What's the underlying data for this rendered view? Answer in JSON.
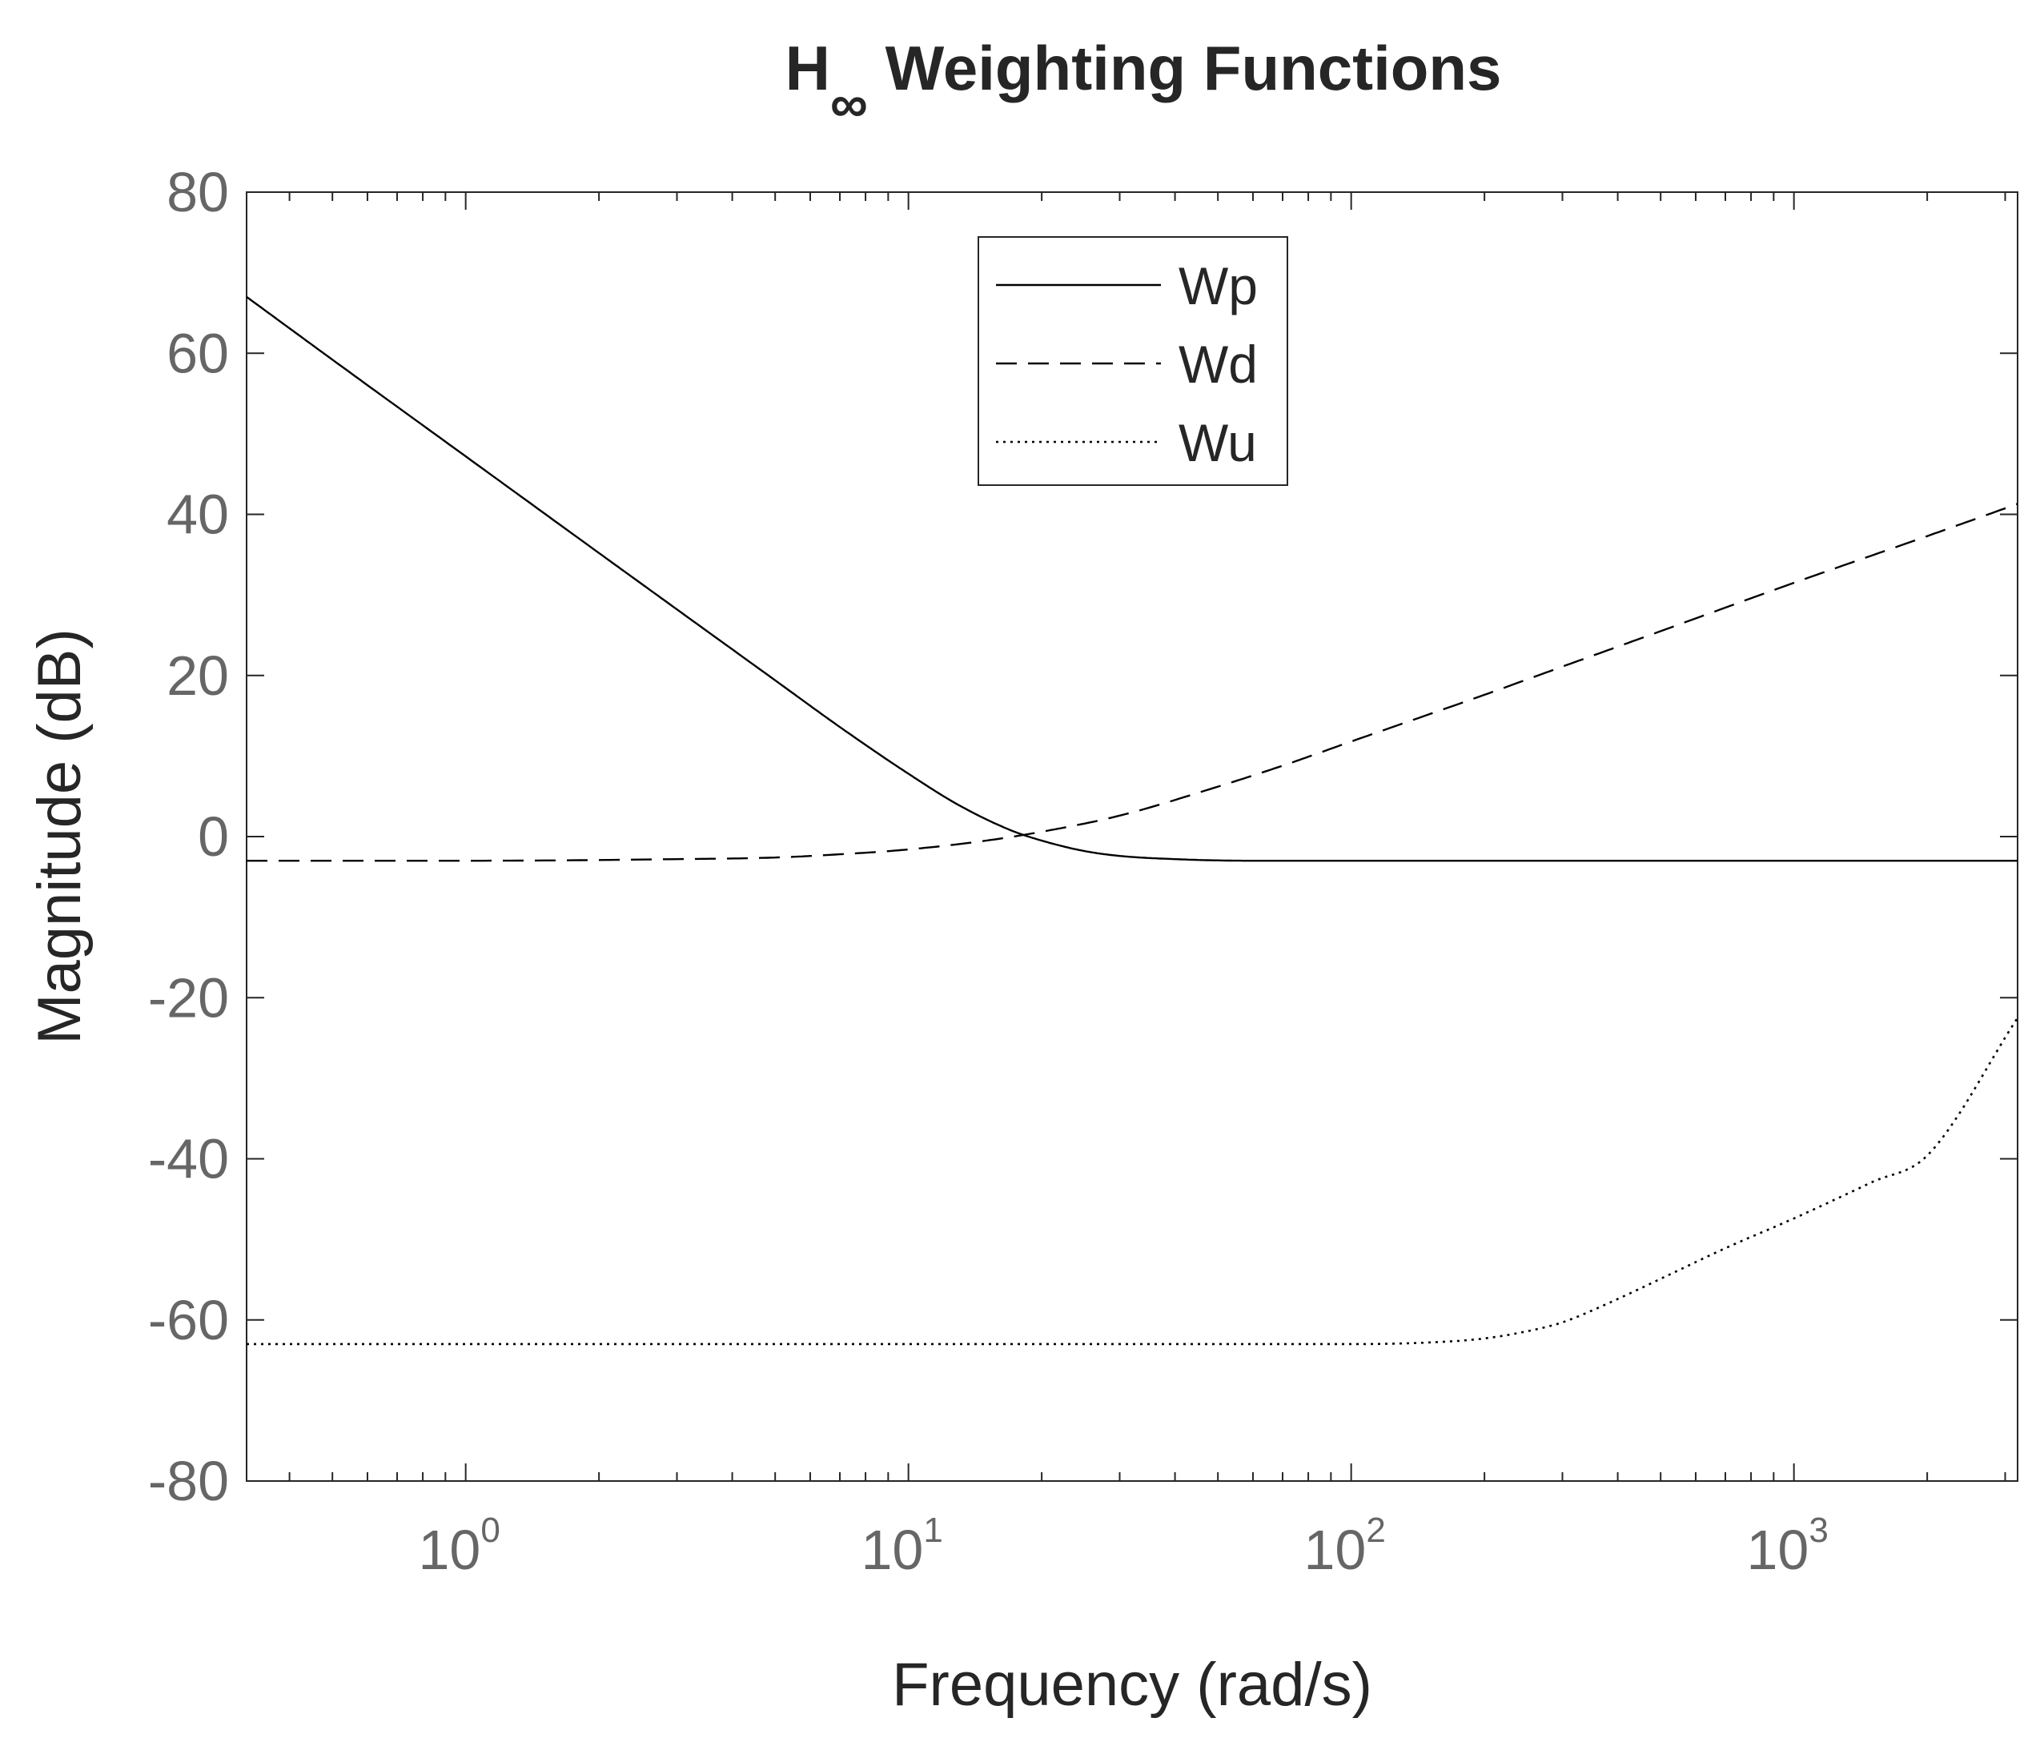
{
  "chart_data": {
    "type": "line",
    "title": {
      "main": "H",
      "subscript": "∞",
      "rest": " Weighting Functions"
    },
    "xlabel": "Frequency (rad/s)",
    "ylabel": "Magnitude (dB)",
    "x_scale": "log",
    "xlim": [
      0.32,
      3200
    ],
    "ylim": [
      -80,
      80
    ],
    "x_ticks": [
      {
        "value": 1,
        "base": "10",
        "exponent": "0"
      },
      {
        "value": 10,
        "base": "10",
        "exponent": "1"
      },
      {
        "value": 100,
        "base": "10",
        "exponent": "2"
      },
      {
        "value": 1000,
        "base": "10",
        "exponent": "3"
      }
    ],
    "y_ticks": [
      {
        "value": 80,
        "label": "80"
      },
      {
        "value": 60,
        "label": "60"
      },
      {
        "value": 40,
        "label": "40"
      },
      {
        "value": 20,
        "label": "20"
      },
      {
        "value": 0,
        "label": "0"
      },
      {
        "value": -20,
        "label": "-20"
      },
      {
        "value": -40,
        "label": "-40"
      },
      {
        "value": -60,
        "label": "-60"
      },
      {
        "value": -80,
        "label": "-80"
      }
    ],
    "grid": false,
    "legend_position": "top-center",
    "series": [
      {
        "name": "Wp",
        "style": "solid",
        "color": "#000000",
        "x": [
          0.32,
          0.5,
          1,
          2,
          3,
          5,
          7,
          10,
          13,
          17,
          20,
          25,
          30,
          40,
          60,
          100,
          300,
          1000,
          3200
        ],
        "y": [
          67,
          59.2,
          47.2,
          35.2,
          28.2,
          19.4,
          13.6,
          7.8,
          3.9,
          0.8,
          -0.5,
          -1.8,
          -2.4,
          -2.8,
          -3,
          -3,
          -3,
          -3,
          -3
        ]
      },
      {
        "name": "Wd",
        "style": "dashed",
        "color": "#000000",
        "x": [
          0.32,
          1,
          3,
          5,
          7,
          10,
          15,
          20,
          30,
          50,
          70,
          100,
          200,
          300,
          500,
          1000,
          2000,
          3200
        ],
        "y": [
          -3,
          -3,
          -2.8,
          -2.6,
          -2.2,
          -1.6,
          -0.5,
          0.6,
          2.6,
          6.2,
          8.8,
          11.8,
          17.6,
          21.1,
          25.5,
          31.5,
          37.3,
          41.3
        ]
      },
      {
        "name": "Wu",
        "style": "dotted",
        "color": "#000000",
        "x": [
          0.32,
          1,
          10,
          50,
          100,
          150,
          200,
          250,
          300,
          400,
          500,
          700,
          1000,
          1500,
          2000,
          3200
        ],
        "y": [
          -63,
          -63,
          -63,
          -63,
          -63,
          -62.8,
          -62.3,
          -61.4,
          -60.3,
          -57.4,
          -54.9,
          -51.1,
          -47.4,
          -42.9,
          -39.6,
          -22.5
        ]
      }
    ]
  }
}
